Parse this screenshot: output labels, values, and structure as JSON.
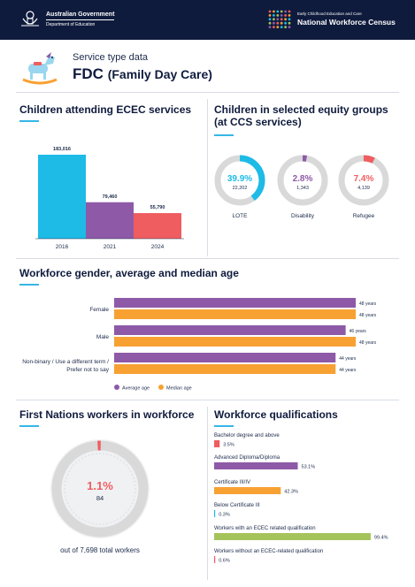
{
  "header": {
    "gov_line1": "Australian Government",
    "gov_line2": "Department of Education",
    "census_line1": "Early Childhood Education and Care",
    "census_line2": "National Workforce Census"
  },
  "service": {
    "label": "Service type data",
    "code": "FDC",
    "name": "(Family Day Care)"
  },
  "sections": {
    "attending": "Children attending ECEC services",
    "equity_line1": "Children in selected equity groups",
    "equity_line2": "(at CCS services)",
    "workforce": "Workforce gender, average and median age",
    "first_nations": "First Nations workers in workforce",
    "qualifications": "Workforce qualifications"
  },
  "colors": {
    "navy": "#0f1b3d",
    "cyan": "#1dbbe6",
    "purple": "#8e5aa8",
    "red": "#ef5d60",
    "orange": "#f7a133",
    "green": "#a5c35b",
    "grey": "#d9d9d9",
    "accent": "#36b7e6"
  },
  "chart_data": [
    {
      "id": "attending",
      "type": "bar",
      "categories": [
        "2016",
        "2021",
        "2024"
      ],
      "values": [
        183016,
        79460,
        55790
      ],
      "value_labels": [
        "183,016",
        "79,460",
        "55,790"
      ],
      "colors": [
        "#1dbbe6",
        "#8e5aa8",
        "#ef5d60"
      ],
      "ylim": [
        0,
        183016
      ]
    },
    {
      "id": "equity",
      "type": "pie",
      "items": [
        {
          "label": "LOTE",
          "percent": 39.9,
          "percent_label": "39.9%",
          "count": "22,202",
          "color": "#1dbbe6"
        },
        {
          "label": "Disability",
          "percent": 2.8,
          "percent_label": "2.8%",
          "count": "1,343",
          "color": "#8e5aa8"
        },
        {
          "label": "Refugee",
          "percent": 7.4,
          "percent_label": "7.4%",
          "count": "4,139",
          "color": "#ef5d60"
        }
      ]
    },
    {
      "id": "workforce_age",
      "type": "bar",
      "orientation": "horizontal",
      "categories": [
        "Female",
        "Male",
        "Non-binary / Use a different term / Prefer not to say"
      ],
      "category_lines": [
        [
          "Female"
        ],
        [
          "Male"
        ],
        [
          "Non-binary / Use a different term /",
          "Prefer not to say"
        ]
      ],
      "series": [
        {
          "name": "Average age",
          "color": "#8e5aa8",
          "values": [
            48,
            46,
            44
          ],
          "labels": [
            "48 years",
            "46 years",
            "44 years"
          ]
        },
        {
          "name": "Median age",
          "color": "#f7a133",
          "values": [
            48,
            48,
            44
          ],
          "labels": [
            "48 years",
            "48 years",
            "44 years"
          ]
        }
      ],
      "xlim": [
        0,
        48
      ],
      "legend_position": "bottom-center"
    },
    {
      "id": "first_nations",
      "type": "pie",
      "percent": 1.1,
      "percent_label": "1.1%",
      "count": "84",
      "caption": "out of 7,698 total workers",
      "color": "#ef5d60"
    },
    {
      "id": "qualifications",
      "type": "bar",
      "orientation": "horizontal",
      "categories": [
        "Bachelor degree and above",
        "Advanced Diploma/Diploma",
        "Certificate III/IV",
        "Below Certificate III",
        "Workers with an ECEC related qualification",
        "Workers without an ECEC-related qualification"
      ],
      "values": [
        3.5,
        53.1,
        42.3,
        0.3,
        99.4,
        0.6
      ],
      "labels": [
        "3.5%",
        "53.1%",
        "42.3%",
        "0.3%",
        "99.4%",
        "0.6%"
      ],
      "colors": [
        "#ef5d60",
        "#8e5aa8",
        "#f7a133",
        "#1dbbe6",
        "#a5c35b",
        "#ef5d60"
      ],
      "xlim": [
        0,
        100
      ]
    }
  ]
}
